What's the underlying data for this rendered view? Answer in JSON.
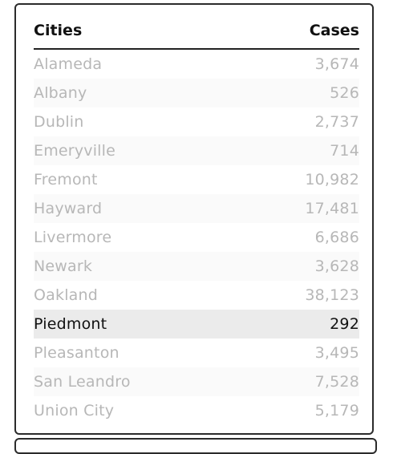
{
  "table": {
    "headers": {
      "city": "Cities",
      "cases": "Cases"
    },
    "rows": [
      {
        "city": "Alameda",
        "cases": "3,674",
        "selected": false
      },
      {
        "city": "Albany",
        "cases": "526",
        "selected": false
      },
      {
        "city": "Dublin",
        "cases": "2,737",
        "selected": false
      },
      {
        "city": "Emeryville",
        "cases": "714",
        "selected": false
      },
      {
        "city": "Fremont",
        "cases": "10,982",
        "selected": false
      },
      {
        "city": "Hayward",
        "cases": "17,481",
        "selected": false
      },
      {
        "city": "Livermore",
        "cases": "6,686",
        "selected": false
      },
      {
        "city": "Newark",
        "cases": "3,628",
        "selected": false
      },
      {
        "city": "Oakland",
        "cases": "38,123",
        "selected": false
      },
      {
        "city": "Piedmont",
        "cases": "292",
        "selected": true
      },
      {
        "city": "Pleasanton",
        "cases": "3,495",
        "selected": false
      },
      {
        "city": "San Leandro",
        "cases": "7,528",
        "selected": false
      },
      {
        "city": "Union City",
        "cases": "5,179",
        "selected": false
      }
    ]
  },
  "colors": {
    "border": "#2b2b2b",
    "header_text": "#111111",
    "row_text": "#b7b7b7",
    "selected_text": "#111111",
    "selected_bg": "#ebebeb",
    "stripe_bg": "#fafafa"
  }
}
